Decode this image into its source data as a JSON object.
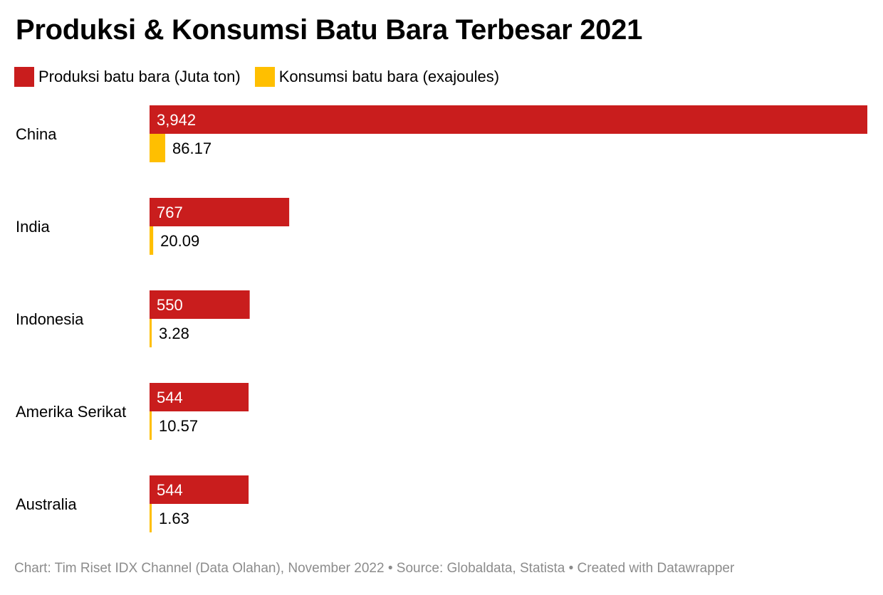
{
  "title": "Produksi & Konsumsi Batu Bara Terbesar 2021",
  "legend": {
    "production_label": "Produksi batu bara (Juta ton)",
    "consumption_label": "Konsumsi batu bara (exajoules)"
  },
  "colors": {
    "production": "#c91d1d",
    "consumption": "#ffbf00",
    "text": "#000000",
    "footer": "#8c8c8c"
  },
  "footer": "Chart: Tim Riset IDX Channel (Data Olahan), November 2022 • Source: Globaldata, Statista • Created with Datawrapper",
  "chart_data": {
    "type": "bar",
    "orientation": "horizontal",
    "categories": [
      "China",
      "India",
      "Indonesia",
      "Amerika Serikat",
      "Australia"
    ],
    "series": [
      {
        "name": "Produksi batu bara (Juta ton)",
        "values": [
          3942,
          767,
          550,
          544,
          544
        ],
        "labels": [
          "3,942",
          "767",
          "550",
          "544",
          "544"
        ]
      },
      {
        "name": "Konsumsi batu bara (exajoules)",
        "values": [
          86.17,
          20.09,
          3.28,
          10.57,
          1.63
        ],
        "labels": [
          "86.17",
          "20.09",
          "3.28",
          "10.57",
          "1.63"
        ]
      }
    ],
    "xlim_production": [
      0,
      3942
    ],
    "xlim_consumption": [
      0,
      3942
    ],
    "grid": false,
    "legend_position": "top-left"
  }
}
